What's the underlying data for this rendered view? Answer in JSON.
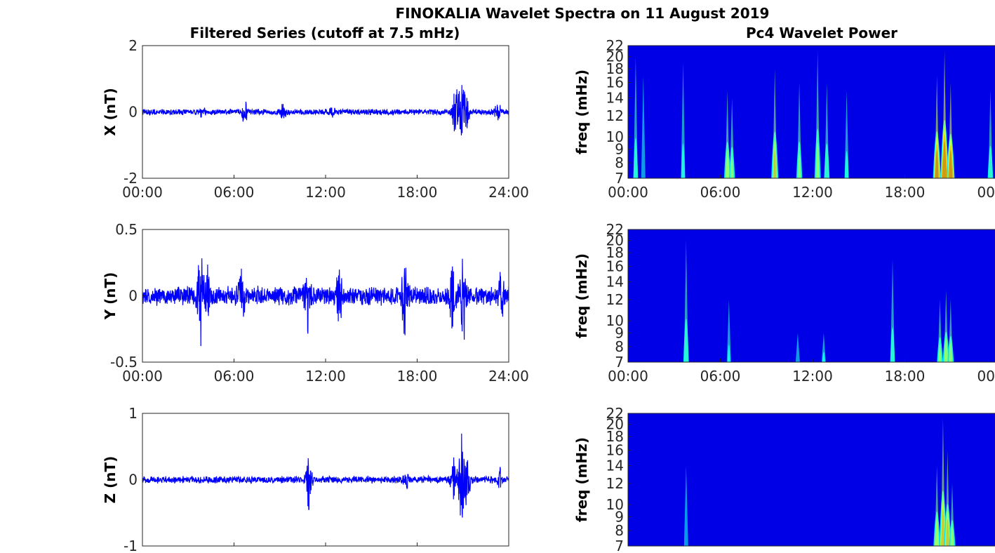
{
  "figure": {
    "title": "FINOKALIA Wavelet Spectra on 11 August 2019",
    "left_title": "Filtered Series (cutoff at 7.5 mHz)",
    "right_title": "Pc4 Wavelet Power"
  },
  "colors": {
    "line": "#0000ff",
    "axes": "#262626",
    "colormap": "jet"
  },
  "chart_data": [
    {
      "type": "line",
      "component": "X",
      "ylabel": "X (nT)",
      "ylim": [
        -2,
        2
      ],
      "yticks": [
        "2",
        "0",
        "-2"
      ],
      "xlim": [
        0,
        24
      ],
      "xticks": [
        "00:00",
        "06:00",
        "12:00",
        "18:00",
        "24:00"
      ],
      "noise_amplitude": 0.1,
      "bursts": [
        {
          "hour": 3.9,
          "peak": 0.1
        },
        {
          "hour": 6.7,
          "peak": 0.35
        },
        {
          "hour": 9.2,
          "peak": 0.2
        },
        {
          "hour": 12.5,
          "peak": 0.15
        },
        {
          "hour": 20.5,
          "peak": 0.9
        },
        {
          "hour": 20.9,
          "peak": 1.3
        },
        {
          "hour": 21.2,
          "peak": 0.7
        },
        {
          "hour": 23.3,
          "peak": 0.3
        }
      ]
    },
    {
      "type": "line",
      "component": "Y",
      "ylabel": "Y (nT)",
      "ylim": [
        -0.5,
        0.5
      ],
      "yticks": [
        "0.5",
        "0",
        "-0.5"
      ],
      "xlim": [
        0,
        24
      ],
      "xticks": [
        "00:00",
        "06:00",
        "12:00",
        "18:00",
        "24:00"
      ],
      "noise_amplitude": 0.08,
      "bursts": [
        {
          "hour": 3.8,
          "peak": 0.35
        },
        {
          "hour": 4.2,
          "peak": 0.3
        },
        {
          "hour": 6.5,
          "peak": 0.2
        },
        {
          "hour": 10.8,
          "peak": 0.22
        },
        {
          "hour": 12.9,
          "peak": 0.2
        },
        {
          "hour": 17.2,
          "peak": 0.3
        },
        {
          "hour": 20.3,
          "peak": 0.3
        },
        {
          "hour": 21.0,
          "peak": 0.45
        },
        {
          "hour": 23.5,
          "peak": 0.15
        }
      ]
    },
    {
      "type": "line",
      "component": "Z",
      "ylabel": "Z (nT)",
      "ylim": [
        -1,
        1
      ],
      "yticks": [
        "1",
        "0",
        "-1"
      ],
      "xlim": [
        0,
        24
      ],
      "xticks": [],
      "noise_amplitude": 0.06,
      "bursts": [
        {
          "hour": 10.9,
          "peak": -0.45
        },
        {
          "hour": 17.3,
          "peak": 0.15
        },
        {
          "hour": 20.4,
          "peak": 0.35
        },
        {
          "hour": 20.9,
          "peak": 0.8
        },
        {
          "hour": 21.3,
          "peak": 0.4
        },
        {
          "hour": 23.4,
          "peak": 0.15
        }
      ]
    },
    {
      "type": "heatmap",
      "component": "X",
      "ylabel": "freq (mHz)",
      "yticks": [
        "22",
        "20",
        "18",
        "16",
        "14",
        "12",
        "10",
        "9",
        "8",
        "7"
      ],
      "ytick_values": [
        22,
        20,
        18,
        16,
        14,
        12,
        10,
        9,
        8,
        7
      ],
      "ylim": [
        7,
        22
      ],
      "xlim": [
        0,
        24
      ],
      "xticks": [
        "00:00",
        "06:00",
        "12:00",
        "18:00",
        "00"
      ],
      "streaks": [
        {
          "hour": 0.5,
          "fmax": 20,
          "power": 0.35
        },
        {
          "hour": 1.0,
          "fmax": 17,
          "power": 0.2
        },
        {
          "hour": 3.6,
          "fmax": 19,
          "power": 0.3
        },
        {
          "hour": 6.5,
          "fmax": 15,
          "power": 0.55
        },
        {
          "hour": 6.8,
          "fmax": 14,
          "power": 0.45
        },
        {
          "hour": 9.6,
          "fmax": 18,
          "power": 0.65
        },
        {
          "hour": 11.2,
          "fmax": 16,
          "power": 0.45
        },
        {
          "hour": 12.4,
          "fmax": 21,
          "power": 0.5
        },
        {
          "hour": 13.0,
          "fmax": 16,
          "power": 0.4
        },
        {
          "hour": 14.3,
          "fmax": 15,
          "power": 0.3
        },
        {
          "hour": 20.2,
          "fmax": 17,
          "power": 0.9
        },
        {
          "hour": 20.7,
          "fmax": 21,
          "power": 1.0
        },
        {
          "hour": 21.1,
          "fmax": 16,
          "power": 0.95
        },
        {
          "hour": 23.7,
          "fmax": 15,
          "power": 0.4
        }
      ]
    },
    {
      "type": "heatmap",
      "component": "Y",
      "ylabel": "freq (mHz)",
      "yticks": [
        "22",
        "20",
        "18",
        "16",
        "14",
        "12",
        "10",
        "9",
        "8",
        "7"
      ],
      "ytick_values": [
        22,
        20,
        18,
        16,
        14,
        12,
        10,
        9,
        8,
        7
      ],
      "ylim": [
        7,
        22
      ],
      "xlim": [
        0,
        24
      ],
      "xticks": [
        "00:00",
        "06:00",
        "12:00",
        "18:00",
        "00"
      ],
      "streaks": [
        {
          "hour": 3.8,
          "fmax": 20,
          "power": 0.4
        },
        {
          "hour": 6.6,
          "fmax": 12,
          "power": 0.25
        },
        {
          "hour": 11.1,
          "fmax": 9,
          "power": 0.2
        },
        {
          "hour": 12.8,
          "fmax": 9,
          "power": 0.25
        },
        {
          "hour": 17.3,
          "fmax": 17,
          "power": 0.35
        },
        {
          "hour": 20.4,
          "fmax": 12,
          "power": 0.45
        },
        {
          "hour": 20.8,
          "fmax": 13,
          "power": 0.55
        },
        {
          "hour": 21.1,
          "fmax": 12,
          "power": 0.5
        }
      ]
    },
    {
      "type": "heatmap",
      "component": "Z",
      "ylabel": "freq (mHz)",
      "yticks": [
        "22",
        "20",
        "18",
        "16",
        "14",
        "12",
        "10",
        "9",
        "8",
        "7"
      ],
      "ytick_values": [
        22,
        20,
        18,
        16,
        14,
        12,
        10,
        9,
        8,
        7
      ],
      "ylim": [
        7,
        22
      ],
      "xlim": [
        0,
        24
      ],
      "xticks": [],
      "streaks": [
        {
          "hour": 3.8,
          "fmax": 14,
          "power": 0.15
        },
        {
          "hour": 20.2,
          "fmax": 14,
          "power": 0.6
        },
        {
          "hour": 20.6,
          "fmax": 21,
          "power": 0.75
        },
        {
          "hour": 20.9,
          "fmax": 16,
          "power": 0.7
        },
        {
          "hour": 21.2,
          "fmax": 12,
          "power": 0.5
        }
      ]
    }
  ]
}
